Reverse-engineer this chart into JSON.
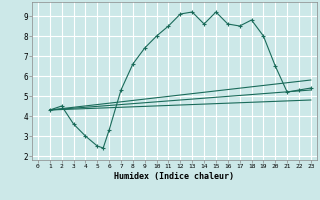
{
  "xlabel": "Humidex (Indice chaleur)",
  "bg_color": "#cce8e8",
  "grid_color": "#ffffff",
  "line_color": "#1a6b5a",
  "xlim": [
    -0.5,
    23.5
  ],
  "ylim": [
    1.8,
    9.7
  ],
  "xticks": [
    0,
    1,
    2,
    3,
    4,
    5,
    6,
    7,
    8,
    9,
    10,
    11,
    12,
    13,
    14,
    15,
    16,
    17,
    18,
    19,
    20,
    21,
    22,
    23
  ],
  "yticks": [
    2,
    3,
    4,
    5,
    6,
    7,
    8,
    9
  ],
  "series1_x": [
    1,
    2,
    3,
    4,
    5,
    5.5,
    6,
    7,
    8,
    9,
    10,
    11,
    12,
    13,
    14,
    15,
    16,
    17,
    18,
    19,
    20,
    21,
    22,
    23
  ],
  "series1_y": [
    4.3,
    4.5,
    3.6,
    3.0,
    2.5,
    2.4,
    3.3,
    5.3,
    6.6,
    7.4,
    8.0,
    8.5,
    9.1,
    9.2,
    8.6,
    9.2,
    8.6,
    8.5,
    8.8,
    8.0,
    6.5,
    5.2,
    5.3,
    5.4
  ],
  "series2_x": [
    1,
    23
  ],
  "series2_y": [
    4.3,
    5.3
  ],
  "series3_x": [
    1,
    23
  ],
  "series3_y": [
    4.3,
    4.8
  ],
  "series4_x": [
    1,
    23
  ],
  "series4_y": [
    4.3,
    5.8
  ]
}
